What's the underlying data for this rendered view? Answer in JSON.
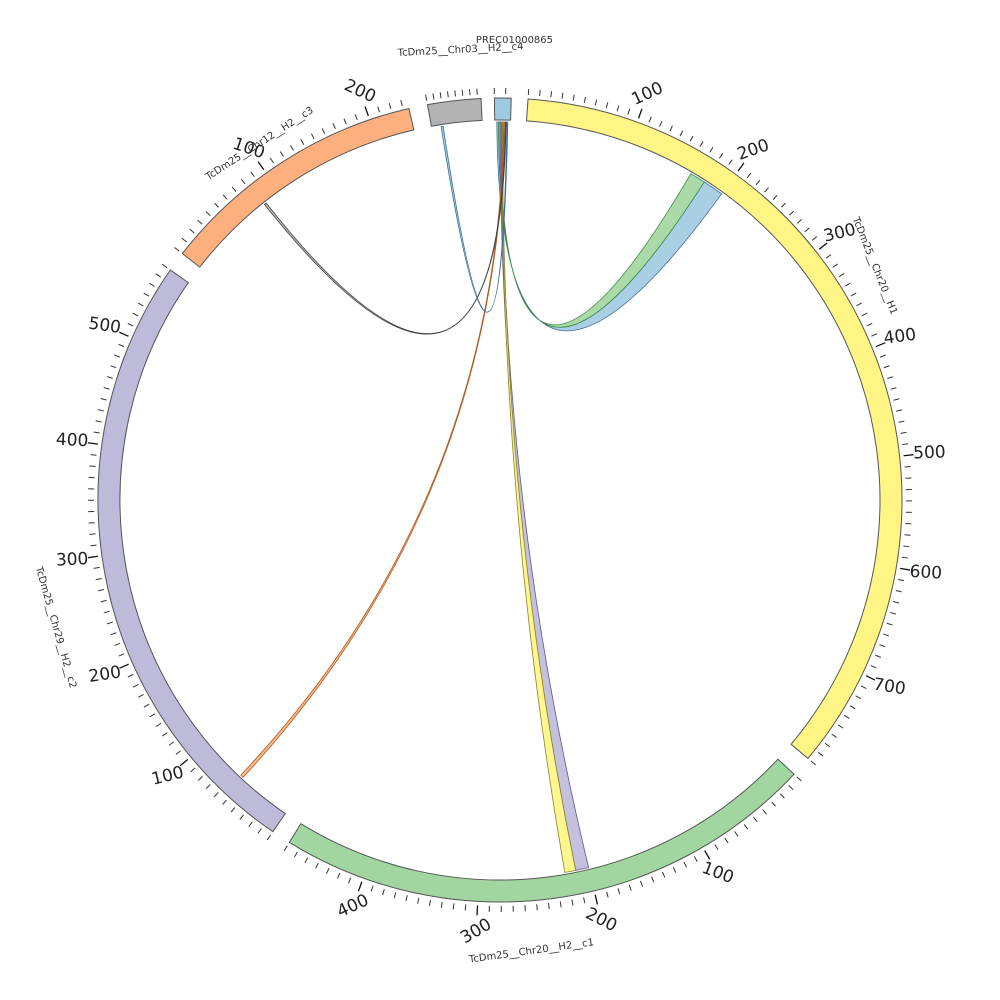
{
  "chart_data": {
    "type": "chord",
    "segments": [
      {
        "id": "H1",
        "name": "TcDm25__Chr20__H1",
        "length": 790,
        "color": "#FFF584",
        "direction": "cw"
      },
      {
        "id": "c1",
        "name": "TcDm25__Chr20__H2__c1",
        "length": 470,
        "color": "#A2D6A0",
        "direction": "ccw"
      },
      {
        "id": "c2",
        "name": "TcDm25__Chr29__H2__c2",
        "length": 570,
        "color": "#BDBADA",
        "direction": "ccw"
      },
      {
        "id": "c3",
        "name": "TcDm25__Chr12__H2__c3",
        "length": 235,
        "color": "#FDB07E",
        "direction": "ccw"
      },
      {
        "id": "chr03",
        "name": "TcDm25__Chr03__H2__c4",
        "length": 75,
        "color": "#B3B3B3",
        "direction": "ccw"
      },
      {
        "id": "pre",
        "name": "PREC01000865",
        "length": 15,
        "color": "#9ECAE1",
        "direction": "cw"
      }
    ],
    "tick_labels": {
      "H1": [
        "100",
        "200",
        "300",
        "400",
        "500",
        "600",
        "700"
      ],
      "c1": [
        "100",
        "200",
        "300",
        "400"
      ],
      "c2": [
        "100",
        "200",
        "300",
        "400",
        "500"
      ],
      "c3": [
        "100",
        "200"
      ]
    },
    "links": [
      {
        "source": "pre",
        "target": "H1",
        "target_range": [
          180,
          200
        ],
        "color": "#9ECAE1",
        "stroke": "#3A6E99"
      },
      {
        "source": "pre",
        "target": "H1",
        "target_range": [
          165,
          180
        ],
        "color": "#A2D6A0",
        "stroke": "#3B8A3E"
      },
      {
        "source": "pre",
        "target": "c1",
        "target_range": [
          200,
          212
        ],
        "color": "#BDBADA",
        "stroke": "#5C5791"
      },
      {
        "source": "pre",
        "target": "c1",
        "target_range": [
          212,
          222
        ],
        "color": "#FFF584",
        "stroke": "#8C8424"
      },
      {
        "source": "pre",
        "target": "c2",
        "target_range": [
          53,
          56
        ],
        "color": "#FDB07E",
        "stroke": "#B05A20"
      },
      {
        "source": "pre",
        "target": "c3",
        "target_range": [
          82,
          84
        ],
        "color": "#B3B3B3",
        "stroke": "#444444"
      },
      {
        "source": "pre",
        "target": "chr03",
        "target_range": [
          14,
          17
        ],
        "color": "#9ECAE1",
        "stroke": "#3A6E99"
      }
    ]
  }
}
